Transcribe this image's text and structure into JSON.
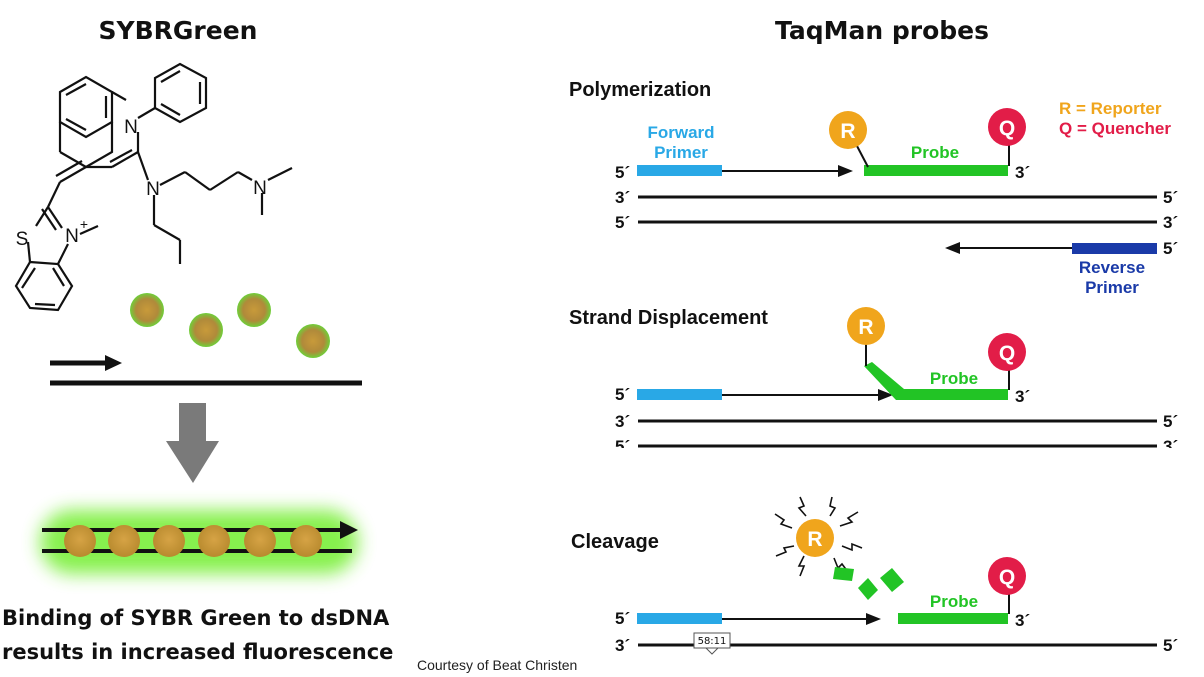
{
  "left_panel": {
    "title": "SYBRGreen",
    "chemistry": {
      "atom_n1": "N",
      "atom_n2": "N",
      "atom_n3": "N",
      "atom_n_plus": "N",
      "charge": "+",
      "atom_s": "S"
    },
    "caption_line1": "Binding of SYBR Green to dsDNA",
    "caption_line2": "results in increased fluorescence"
  },
  "right_panel": {
    "title": "TaqMan probes",
    "legend": {
      "reporter": "R = Reporter",
      "quencher": "Q = Quencher"
    },
    "steps": [
      {
        "label": "Polymerization"
      },
      {
        "label": "Strand Displacement"
      },
      {
        "label": "Cleavage"
      }
    ],
    "labels": {
      "forward_primer_1": "Forward",
      "forward_primer_2": "Primer",
      "reverse_primer_1": "Reverse",
      "reverse_primer_2": "Primer",
      "probe": "Probe",
      "reporter_letter": "R",
      "quencher_letter": "Q",
      "five_prime": "5´",
      "three_prime": "3´"
    }
  },
  "footer": {
    "credit": "Courtesy of Beat Christen",
    "timestamp": "58:11"
  },
  "colors": {
    "forward_primer": "#29a8e6",
    "reverse_primer": "#1a3aa8",
    "probe": "#22c425",
    "reporter": "#f0a51c",
    "quencher": "#e21d48",
    "arrow_grey": "#7a7a7a",
    "glow": "#7aef3a"
  }
}
